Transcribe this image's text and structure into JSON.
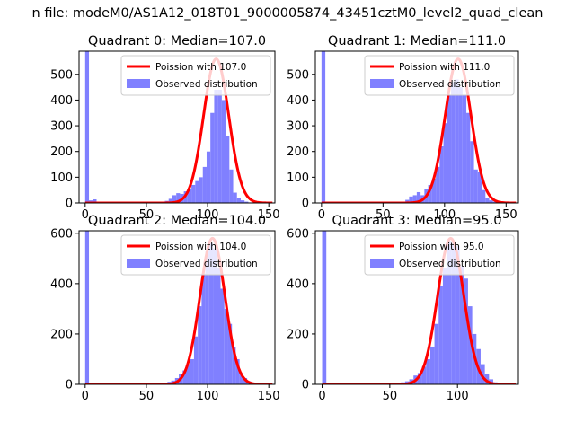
{
  "figure": {
    "suptitle": "n file: modeM0/AS1A12_018T01_9000005874_43451cztM0_level2_quad_clean",
    "colors": {
      "poisson": "#ff0000",
      "observed": "#8080ff"
    }
  },
  "chart_data": [
    {
      "type": "bar",
      "title": "Quadrant 0: Median=107.0",
      "xlim": [
        -5,
        155
      ],
      "ylim": [
        0,
        590
      ],
      "xticks": [
        0,
        50,
        100,
        150
      ],
      "yticks": [
        0,
        100,
        200,
        300,
        400,
        500
      ],
      "legend": "top-right",
      "series": [
        {
          "name": "Poission with 107.0",
          "kind": "line",
          "mean": 107.0,
          "peak": 560,
          "sigma": 10.3
        },
        {
          "name": "Observed distribution",
          "kind": "histogram",
          "bin_width": 3.1,
          "bins": [
            [
              0,
              590
            ],
            [
              3.1,
              10
            ],
            [
              6.2,
              14
            ],
            [
              9.3,
              3
            ],
            [
              12.4,
              1
            ],
            [
              58.9,
              2
            ],
            [
              62,
              4
            ],
            [
              65.1,
              8
            ],
            [
              68.2,
              16
            ],
            [
              71.3,
              30
            ],
            [
              74.4,
              38
            ],
            [
              77.5,
              35
            ],
            [
              80.6,
              45
            ],
            [
              83.7,
              55
            ],
            [
              86.8,
              70
            ],
            [
              89.9,
              85
            ],
            [
              93,
              100
            ],
            [
              96.1,
              140
            ],
            [
              99.2,
              200
            ],
            [
              102.3,
              350
            ],
            [
              105.4,
              440
            ],
            [
              108.5,
              440
            ],
            [
              111.6,
              400
            ],
            [
              114.7,
              260
            ],
            [
              117.8,
              130
            ],
            [
              120.9,
              40
            ],
            [
              124,
              20
            ],
            [
              127.1,
              10
            ],
            [
              130.2,
              5
            ],
            [
              133.3,
              2
            ],
            [
              136.4,
              1
            ]
          ]
        }
      ]
    },
    {
      "type": "bar",
      "title": "Quadrant 1: Median=111.0",
      "xlim": [
        -5,
        160
      ],
      "ylim": [
        0,
        590
      ],
      "xticks": [
        0,
        50,
        100,
        150
      ],
      "yticks": [
        0,
        100,
        200,
        300,
        400,
        500
      ],
      "legend": "top-right",
      "series": [
        {
          "name": "Poission with 111.0",
          "kind": "line",
          "mean": 111.0,
          "peak": 560,
          "sigma": 10.5
        },
        {
          "name": "Observed distribution",
          "kind": "histogram",
          "bin_width": 3.1,
          "bins": [
            [
              0,
              590
            ],
            [
              3.1,
              4
            ],
            [
              6.2,
              2
            ],
            [
              65,
              5
            ],
            [
              68.1,
              12
            ],
            [
              71.2,
              25
            ],
            [
              74.3,
              30
            ],
            [
              77.4,
              42
            ],
            [
              80.5,
              30
            ],
            [
              83.6,
              55
            ],
            [
              86.7,
              70
            ],
            [
              89.8,
              95
            ],
            [
              92.9,
              140
            ],
            [
              96,
              220
            ],
            [
              99.1,
              310
            ],
            [
              102.2,
              420
            ],
            [
              105.3,
              470
            ],
            [
              108.4,
              480
            ],
            [
              111.5,
              450
            ],
            [
              114.6,
              420
            ],
            [
              117.7,
              350
            ],
            [
              120.8,
              240
            ],
            [
              123.9,
              130
            ],
            [
              127,
              120
            ],
            [
              130.1,
              50
            ],
            [
              133.2,
              20
            ],
            [
              136.3,
              10
            ],
            [
              139.4,
              5
            ]
          ]
        }
      ]
    },
    {
      "type": "bar",
      "title": "Quadrant 2: Median=104.0",
      "xlim": [
        -5,
        155
      ],
      "ylim": [
        0,
        610
      ],
      "xticks": [
        0,
        50,
        100,
        150
      ],
      "yticks": [
        0,
        200,
        400,
        600
      ],
      "legend": "top-right",
      "series": [
        {
          "name": "Poission with 104.0",
          "kind": "line",
          "mean": 104.0,
          "peak": 580,
          "sigma": 10.2
        },
        {
          "name": "Observed distribution",
          "kind": "histogram",
          "bin_width": 3.1,
          "bins": [
            [
              0,
              610
            ],
            [
              3.1,
              2
            ],
            [
              61,
              3
            ],
            [
              64.1,
              5
            ],
            [
              67.2,
              10
            ],
            [
              70.3,
              15
            ],
            [
              73.4,
              25
            ],
            [
              76.5,
              40
            ],
            [
              79.6,
              55
            ],
            [
              82.7,
              80
            ],
            [
              85.8,
              100
            ],
            [
              88.9,
              190
            ],
            [
              92,
              310
            ],
            [
              95.1,
              440
            ],
            [
              98.2,
              530
            ],
            [
              101.3,
              560
            ],
            [
              104.4,
              540
            ],
            [
              107.5,
              460
            ],
            [
              110.6,
              380
            ],
            [
              113.7,
              300
            ],
            [
              116.8,
              240
            ],
            [
              119.9,
              150
            ],
            [
              123,
              100
            ],
            [
              126.1,
              45
            ],
            [
              129.2,
              25
            ],
            [
              132.3,
              12
            ],
            [
              135.4,
              5
            ]
          ]
        }
      ]
    },
    {
      "type": "bar",
      "title": "Quadrant 3: Median=95.0",
      "xlim": [
        -5,
        145
      ],
      "ylim": [
        0,
        610
      ],
      "xticks": [
        0,
        50,
        100
      ],
      "yticks": [
        0,
        200,
        400,
        600
      ],
      "legend": "top-right",
      "series": [
        {
          "name": "Poission with 95.0",
          "kind": "line",
          "mean": 95.0,
          "peak": 580,
          "sigma": 9.7
        },
        {
          "name": "Observed distribution",
          "kind": "histogram",
          "bin_width": 3.1,
          "bins": [
            [
              0,
              610
            ],
            [
              3.1,
              3
            ],
            [
              52,
              3
            ],
            [
              55.1,
              5
            ],
            [
              58.2,
              8
            ],
            [
              61.3,
              12
            ],
            [
              64.4,
              20
            ],
            [
              67.5,
              35
            ],
            [
              70.6,
              45
            ],
            [
              73.7,
              70
            ],
            [
              76.8,
              100
            ],
            [
              79.9,
              150
            ],
            [
              83,
              240
            ],
            [
              86.1,
              390
            ],
            [
              89.2,
              460
            ],
            [
              92.3,
              570
            ],
            [
              95.4,
              560
            ],
            [
              98.5,
              550
            ],
            [
              101.6,
              470
            ],
            [
              104.7,
              420
            ],
            [
              107.8,
              310
            ],
            [
              110.9,
              200
            ],
            [
              114,
              140
            ],
            [
              117.1,
              80
            ],
            [
              120.2,
              40
            ],
            [
              123.3,
              20
            ],
            [
              126.4,
              8
            ],
            [
              129.5,
              3
            ]
          ]
        }
      ]
    }
  ]
}
